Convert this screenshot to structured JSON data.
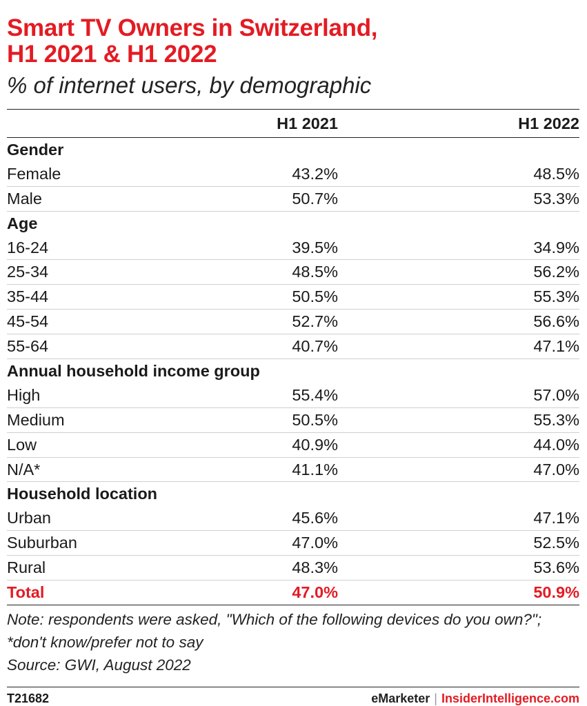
{
  "header": {
    "title_line1": "Smart TV Owners in Switzerland,",
    "title_line2": "H1 2021 & H1 2022",
    "subtitle": "% of internet users, by demographic"
  },
  "chart_data": {
    "type": "table",
    "title": "Smart TV Owners in Switzerland, H1 2021 & H1 2022",
    "subtitle": "% of internet users, by demographic",
    "columns": [
      "",
      "H1 2021",
      "H1 2022"
    ],
    "groups": [
      {
        "name": "Gender",
        "rows": [
          {
            "label": "Female",
            "h1_2021": "43.2%",
            "h1_2022": "48.5%"
          },
          {
            "label": "Male",
            "h1_2021": "50.7%",
            "h1_2022": "53.3%"
          }
        ]
      },
      {
        "name": "Age",
        "rows": [
          {
            "label": "16-24",
            "h1_2021": "39.5%",
            "h1_2022": "34.9%"
          },
          {
            "label": "25-34",
            "h1_2021": "48.5%",
            "h1_2022": "56.2%"
          },
          {
            "label": "35-44",
            "h1_2021": "50.5%",
            "h1_2022": "55.3%"
          },
          {
            "label": "45-54",
            "h1_2021": "52.7%",
            "h1_2022": "56.6%"
          },
          {
            "label": "55-64",
            "h1_2021": "40.7%",
            "h1_2022": "47.1%"
          }
        ]
      },
      {
        "name": "Annual household income group",
        "rows": [
          {
            "label": "High",
            "h1_2021": "55.4%",
            "h1_2022": "57.0%"
          },
          {
            "label": "Medium",
            "h1_2021": "50.5%",
            "h1_2022": "55.3%"
          },
          {
            "label": "Low",
            "h1_2021": "40.9%",
            "h1_2022": "44.0%"
          },
          {
            "label": "N/A*",
            "h1_2021": "41.1%",
            "h1_2022": "47.0%"
          }
        ]
      },
      {
        "name": "Household location",
        "rows": [
          {
            "label": "Urban",
            "h1_2021": "45.6%",
            "h1_2022": "47.1%"
          },
          {
            "label": "Suburban",
            "h1_2021": "47.0%",
            "h1_2022": "52.5%"
          },
          {
            "label": "Rural",
            "h1_2021": "48.3%",
            "h1_2022": "53.6%"
          }
        ]
      }
    ],
    "total": {
      "label": "Total",
      "h1_2021": "47.0%",
      "h1_2022": "50.9%"
    }
  },
  "notes": {
    "note": "Note: respondents were asked, \"Which of the following devices do you own?\"; *don't know/prefer not to say",
    "source": "Source: GWI, August 2022"
  },
  "footer": {
    "code": "T21682",
    "brand": "eMarketer",
    "separator": "|",
    "brand2": "InsiderIntelligence.com"
  },
  "colors": {
    "accent": "#e31b23",
    "text": "#1a1a1a"
  }
}
